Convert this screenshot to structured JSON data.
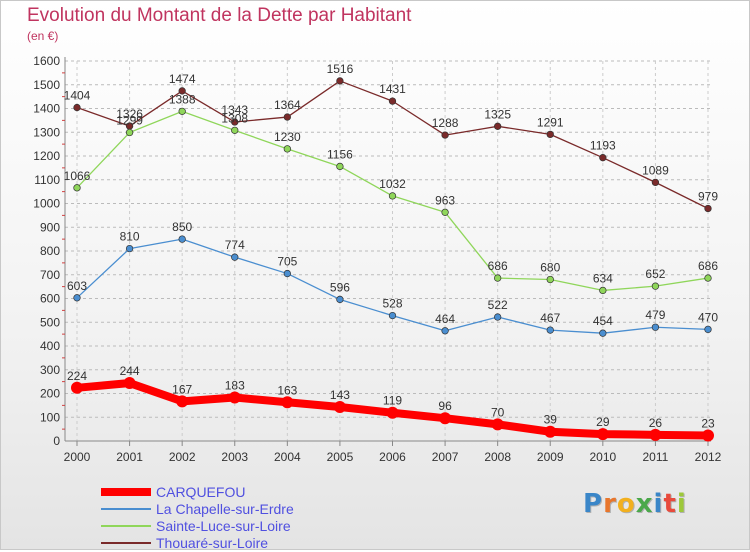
{
  "header": {
    "title": "Evolution du Montant de la Dette par Habitant",
    "subtitle": "(en €)"
  },
  "colors": {
    "title": "#c0345f",
    "legend_text": "#5050e0",
    "axis_text": "#333333",
    "grid": "#bbbbbb"
  },
  "logo": {
    "text": "Proxiti",
    "letter_colors": [
      "#3a86c8",
      "#e8762c",
      "#f2b01e",
      "#4aa84a",
      "#3a86c8",
      "#e84a3c",
      "#9dc83a"
    ]
  },
  "chart_data": {
    "type": "line",
    "title": "Evolution du Montant de la Dette par Habitant",
    "subtitle": "(en €)",
    "xlabel": "",
    "ylabel": "",
    "ylim": [
      0,
      1600
    ],
    "yticks": [
      0,
      100,
      200,
      300,
      400,
      500,
      600,
      700,
      800,
      900,
      1000,
      1100,
      1200,
      1300,
      1400,
      1500,
      1600
    ],
    "grid": "horizontal dashed",
    "legend_position": "bottom-left",
    "x": [
      "2000",
      "2001",
      "2002",
      "2003",
      "2004",
      "2005",
      "2006",
      "2007",
      "2008",
      "2009",
      "2010",
      "2011",
      "2012"
    ],
    "series": [
      {
        "name": "CARQUEFOU",
        "color": "#ff0000",
        "values": [
          224,
          244,
          167,
          183,
          163,
          143,
          119,
          96,
          70,
          39,
          29,
          26,
          23
        ]
      },
      {
        "name": "La Chapelle-sur-Erdre",
        "color": "#4a8ed0",
        "values": [
          603,
          810,
          850,
          774,
          705,
          596,
          528,
          464,
          522,
          467,
          454,
          479,
          470
        ]
      },
      {
        "name": "Sainte-Luce-sur-Loire",
        "color": "#8fd65a",
        "values": [
          1066,
          1299,
          1388,
          1308,
          1230,
          1156,
          1032,
          963,
          686,
          680,
          634,
          652,
          686
        ]
      },
      {
        "name": "Thouaré-sur-Loire",
        "color": "#7a2a2a",
        "values": [
          1404,
          1326,
          1474,
          1343,
          1364,
          1516,
          1431,
          1288,
          1325,
          1291,
          1193,
          1089,
          979
        ]
      }
    ]
  }
}
